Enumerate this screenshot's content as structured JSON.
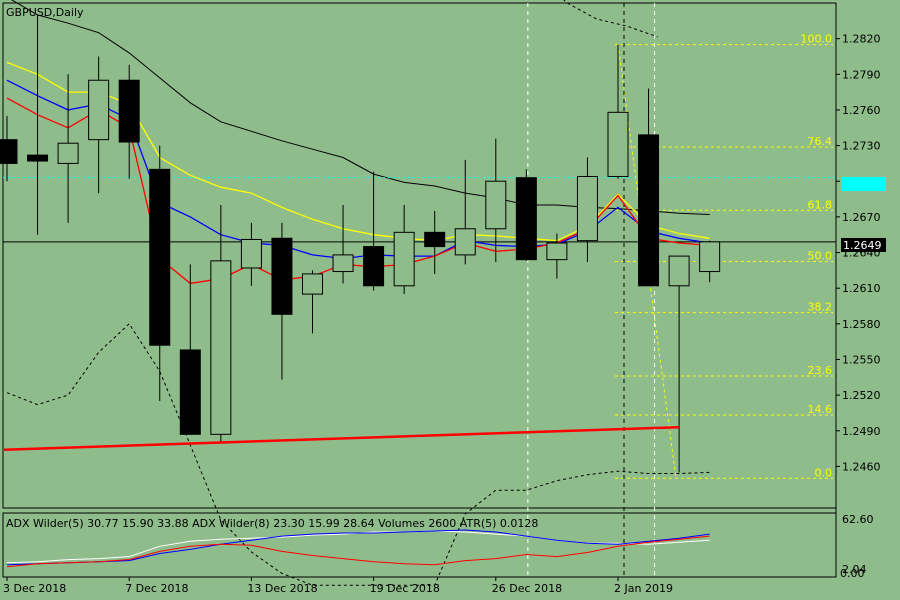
{
  "title": "GBPUSD,Daily",
  "colors": {
    "background": "#8fbc8b",
    "grid": "#000000",
    "fib": "#ffff00",
    "ma_yellow": "#ffff00",
    "ma_blue": "#0000ff",
    "ma_red": "#ff0000",
    "trend_line": "#ff0000",
    "ask_line": "#00ffff",
    "price_box": "#000000"
  },
  "chart_data": {
    "type": "candlestick",
    "symbol": "GBPUSD",
    "timeframe": "Daily",
    "price_range": [
      1.2425,
      1.285
    ],
    "y_ticks": [
      "1.2820",
      "1.2790",
      "1.2760",
      "1.2730",
      "1.2700",
      "1.2670",
      "1.2640",
      "1.2610",
      "1.2580",
      "1.2550",
      "1.2520",
      "1.2490",
      "1.2460"
    ],
    "x_labels": [
      {
        "text": "3 Dec 2018",
        "index": 0
      },
      {
        "text": "7 Dec 2018",
        "index": 4
      },
      {
        "text": "13 Dec 2018",
        "index": 8
      },
      {
        "text": "19 Dec 2018",
        "index": 12
      },
      {
        "text": "26 Dec 2018",
        "index": 16
      },
      {
        "text": "2 Jan 2019",
        "index": 20
      }
    ],
    "candles": [
      {
        "o": 1.2735,
        "h": 1.2755,
        "l": 1.27,
        "c": 1.2715
      },
      {
        "o": 1.2722,
        "h": 1.284,
        "l": 1.2655,
        "c": 1.2717
      },
      {
        "o": 1.2715,
        "h": 1.279,
        "l": 1.2665,
        "c": 1.2732
      },
      {
        "o": 1.2735,
        "h": 1.2805,
        "l": 1.269,
        "c": 1.2785
      },
      {
        "o": 1.2785,
        "h": 1.2798,
        "l": 1.2702,
        "c": 1.2733
      },
      {
        "o": 1.271,
        "h": 1.273,
        "l": 1.2515,
        "c": 1.2562
      },
      {
        "o": 1.2558,
        "h": 1.263,
        "l": 1.2487,
        "c": 1.2487
      },
      {
        "o": 1.2487,
        "h": 1.268,
        "l": 1.248,
        "c": 1.2633
      },
      {
        "o": 1.2627,
        "h": 1.2665,
        "l": 1.2612,
        "c": 1.2651
      },
      {
        "o": 1.2652,
        "h": 1.2665,
        "l": 1.2533,
        "c": 1.2588
      },
      {
        "o": 1.2605,
        "h": 1.2625,
        "l": 1.2572,
        "c": 1.2622
      },
      {
        "o": 1.2624,
        "h": 1.268,
        "l": 1.2614,
        "c": 1.2638
      },
      {
        "o": 1.2645,
        "h": 1.2708,
        "l": 1.2608,
        "c": 1.2612
      },
      {
        "o": 1.2612,
        "h": 1.268,
        "l": 1.2605,
        "c": 1.2657
      },
      {
        "o": 1.2657,
        "h": 1.2675,
        "l": 1.2622,
        "c": 1.2645
      },
      {
        "o": 1.2638,
        "h": 1.2718,
        "l": 1.263,
        "c": 1.266
      },
      {
        "o": 1.266,
        "h": 1.2736,
        "l": 1.2632,
        "c": 1.27
      },
      {
        "o": 1.2703,
        "h": 1.271,
        "l": 1.2633,
        "c": 1.2634
      },
      {
        "o": 1.2634,
        "h": 1.2656,
        "l": 1.2618,
        "c": 1.2648
      },
      {
        "o": 1.265,
        "h": 1.272,
        "l": 1.2632,
        "c": 1.2704
      },
      {
        "o": 1.2704,
        "h": 1.2815,
        "l": 1.2702,
        "c": 1.2758
      },
      {
        "o": 1.2739,
        "h": 1.2778,
        "l": 1.2612,
        "c": 1.2612
      },
      {
        "o": 1.2612,
        "h": 1.2636,
        "l": 1.2455,
        "c": 1.2637
      },
      {
        "o": 1.2624,
        "h": 1.265,
        "l": 1.2615,
        "c": 1.2649
      }
    ],
    "ma_yellow": [
      1.28,
      1.279,
      1.2775,
      1.2775,
      1.2765,
      1.272,
      1.2705,
      1.2695,
      1.269,
      1.2678,
      1.2668,
      1.266,
      1.2655,
      1.2652,
      1.265,
      1.2655,
      1.2654,
      1.2652,
      1.265,
      1.2662,
      1.2689,
      1.2663,
      1.2656,
      1.2652
    ],
    "ma_blue": [
      1.2785,
      1.2772,
      1.276,
      1.2765,
      1.2752,
      1.2682,
      1.267,
      1.2655,
      1.2648,
      1.2646,
      1.2638,
      1.2635,
      1.2638,
      1.2637,
      1.2637,
      1.265,
      1.2646,
      1.2645,
      1.2647,
      1.2658,
      1.2678,
      1.2658,
      1.2652,
      1.2648
    ],
    "ma_red": [
      1.277,
      1.2756,
      1.2745,
      1.276,
      1.2745,
      1.2635,
      1.2614,
      1.2618,
      1.263,
      1.2617,
      1.262,
      1.263,
      1.2628,
      1.263,
      1.2637,
      1.2648,
      1.2641,
      1.2643,
      1.2648,
      1.266,
      1.2688,
      1.2652,
      1.2648,
      1.2646
    ],
    "bb_upper": [
      1.2855,
      1.284,
      1.2833,
      1.2825,
      1.2808,
      1.2787,
      1.2766,
      1.275,
      1.2742,
      1.2734,
      1.2727,
      1.272,
      1.2706,
      1.2699,
      1.2696,
      1.269,
      1.2686,
      1.268,
      1.268,
      1.2678,
      1.2677,
      1.2675,
      1.2673,
      1.2672
    ],
    "bb_upper_far": [
      1.285,
      1.284,
      1.283,
      1.28,
      1.2786,
      1.278,
      1.2771
    ],
    "bb_lower": [
      1.2522,
      1.2512,
      1.252,
      1.2556,
      1.258,
      1.254,
      1.2478,
      1.2415,
      1.2388,
      1.237,
      1.236,
      1.236,
      1.236,
      1.236,
      1.236,
      1.242,
      1.244,
      1.244,
      1.2448,
      1.2453,
      1.2456,
      1.2454,
      1.2454,
      1.2455
    ],
    "fibonacci": {
      "high": 1.2815,
      "low": 1.245,
      "levels": [
        {
          "label": "100.0",
          "ratio": 1.0
        },
        {
          "label": "76.4",
          "ratio": 0.764
        },
        {
          "label": "61.8",
          "ratio": 0.618
        },
        {
          "label": "50.0",
          "ratio": 0.5
        },
        {
          "label": "38.2",
          "ratio": 0.382
        },
        {
          "label": "23.6",
          "ratio": 0.236
        },
        {
          "label": "14.6",
          "ratio": 0.146
        },
        {
          "label": "0.0",
          "ratio": 0.0
        }
      ]
    },
    "trend_line": {
      "start": 1.2474,
      "end": 1.2493,
      "start_index": 0,
      "end_index": 22
    },
    "current_price": "1.2649",
    "current_price_value": 1.2649,
    "ask_price_value": 1.2703,
    "vertical_lines": [
      {
        "index": 17,
        "style": "dashed-light"
      },
      {
        "index": 20,
        "style": "dashed-dark"
      },
      {
        "index": 21,
        "style": "dashed-light"
      }
    ],
    "indicator": {
      "label": "ADX Wilder(5) 30.77 15.90 33.88 ADX Wilder(8) 23.30 15.99 28.64 Volumes 2600 ATR(5) 0.0128",
      "max_label": "62.60",
      "min_label": "0.00",
      "mid_label": "2.04",
      "range": [
        0,
        62.6
      ],
      "white": [
        14,
        15,
        17,
        18,
        20,
        30,
        35,
        37,
        38,
        39,
        41,
        42,
        44,
        44,
        45,
        44,
        42,
        40,
        36,
        33,
        33,
        32,
        34,
        36
      ],
      "blue": [
        12,
        13,
        14,
        15,
        16,
        23,
        27,
        32,
        36,
        40,
        42,
        43,
        43,
        44,
        45,
        46,
        44,
        40,
        36,
        33,
        32,
        35,
        38,
        42
      ],
      "red": [
        10,
        13,
        14,
        15,
        17,
        25,
        30,
        32,
        31,
        25,
        21,
        18,
        15,
        13,
        12,
        16,
        18,
        22,
        20,
        24,
        30,
        34,
        37,
        40
      ]
    }
  }
}
